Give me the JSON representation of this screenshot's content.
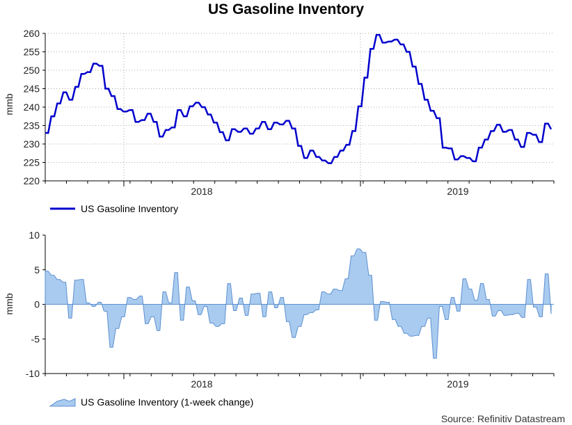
{
  "title": "US Gasoline Inventory",
  "source": "Source: Refinitiv Datastream",
  "colors": {
    "line": "#0000cc",
    "area_fill": "#a9cbef",
    "area_stroke": "#5b8fd0",
    "grid": "#aaaaaa"
  },
  "chart_data": [
    {
      "type": "line",
      "ylabel": "mmb",
      "ylim": [
        220,
        260
      ],
      "yticks": [
        220,
        225,
        230,
        235,
        240,
        245,
        250,
        255,
        260
      ],
      "xlabels": [
        "2018",
        "2019"
      ],
      "grid": true,
      "legend_position": "bottom-left",
      "series": [
        {
          "name": "US Gasoline Inventory",
          "values": [
            233,
            233,
            237.5,
            237.5,
            241,
            241,
            244,
            244,
            242,
            242,
            245.5,
            245.5,
            249,
            249,
            249.5,
            249.5,
            251.8,
            251.8,
            251.2,
            251.2,
            245,
            245,
            243,
            243,
            239.5,
            239.5,
            238.8,
            238.8,
            239.2,
            239.2,
            236,
            236,
            236.5,
            236.5,
            238.2,
            238.2,
            236,
            236,
            232,
            232,
            233.8,
            233.8,
            234.5,
            234.5,
            239.2,
            239.2,
            237.5,
            237.5,
            240.2,
            240.2,
            241.2,
            241.2,
            240,
            240,
            238,
            238,
            235.8,
            235.8,
            233.2,
            233.2,
            231,
            231,
            234,
            234,
            233.3,
            233.3,
            234.2,
            234.2,
            232.8,
            232.8,
            234.2,
            234.2,
            236,
            236,
            234,
            234,
            235.8,
            235.8,
            235.3,
            235.3,
            236.3,
            236.3,
            234.2,
            234.2,
            229.5,
            229.5,
            226.2,
            226.2,
            228.2,
            228.2,
            226.5,
            226.5,
            225.5,
            225.5,
            224.8,
            224.8,
            226.5,
            226.5,
            228.2,
            228.2,
            229.8,
            229.8,
            233.5,
            233.5,
            240.2,
            240.2,
            248,
            248,
            255.8,
            255.8,
            259.6,
            259.6,
            257.5,
            257.5,
            257.8,
            257.8,
            258.3,
            258.3,
            257,
            257,
            255,
            255,
            251,
            251,
            246.3,
            246.3,
            242,
            242,
            239,
            239,
            237,
            237,
            229,
            229,
            228.8,
            228.8,
            225.8,
            225.8,
            226.7,
            226.7,
            226.2,
            226.2,
            225.3,
            225.3,
            229,
            229,
            231.2,
            231.2,
            233.5,
            233.5,
            235.2,
            235.2,
            233.3,
            233.3,
            233.8,
            233.8,
            231.2,
            231.2,
            229.2,
            229.2,
            233,
            233,
            232.5,
            232.5,
            230.5,
            230.5,
            235.5,
            235.5,
            234
          ]
        }
      ]
    },
    {
      "type": "area",
      "ylabel": "mmb",
      "ylim": [
        -10,
        10
      ],
      "yticks": [
        -10,
        -5,
        0,
        5,
        10
      ],
      "xlabels": [
        "2018",
        "2019"
      ],
      "grid": false,
      "legend_position": "bottom-left",
      "series": [
        {
          "name": "US Gasoline Inventory (1-week change)",
          "values": [
            4.8,
            4.8,
            4.2,
            4.2,
            3.6,
            3.6,
            3.2,
            3.2,
            -2,
            -2,
            3.5,
            3.5,
            3.6,
            3.6,
            0.2,
            0.2,
            -0.3,
            -0.3,
            0.3,
            0.3,
            -1,
            -1,
            -6.2,
            -6.2,
            -3.5,
            -3.5,
            -1.8,
            -1.8,
            1,
            1,
            0.7,
            0.7,
            1.2,
            1.2,
            -2.8,
            -2.8,
            -1.8,
            -1.8,
            -3.8,
            -3.8,
            1.8,
            1.8,
            0.2,
            0.2,
            4.6,
            4.6,
            -2.3,
            -2.3,
            2.5,
            2.5,
            0.5,
            0.5,
            -1.5,
            -1.5,
            -0.3,
            -0.3,
            -2.7,
            -2.7,
            -3.2,
            -3.2,
            -2.8,
            -2.8,
            3,
            3,
            -0.9,
            -0.9,
            0.9,
            0.9,
            -1.6,
            -1.6,
            1.5,
            1.5,
            1.6,
            1.6,
            -1.8,
            -1.8,
            1.8,
            1.8,
            -0.5,
            -0.5,
            1,
            1,
            -2.5,
            -2.5,
            -4.8,
            -4.8,
            -3.2,
            -3.2,
            -1.5,
            -1.5,
            -1.2,
            -1.2,
            -0.8,
            -0.8,
            1.8,
            1.8,
            1.5,
            1.5,
            2.2,
            2.2,
            2,
            2,
            3.7,
            3.7,
            7,
            7,
            8,
            8,
            7.5,
            7.5,
            4.2,
            4.2,
            -2.3,
            -2.3,
            0.4,
            0.4,
            0.3,
            0.3,
            -2.2,
            -2.2,
            -3.2,
            -3.2,
            -4.2,
            -4.2,
            -4.6,
            -4.6,
            -4.5,
            -4.5,
            -3.2,
            -3.2,
            -2,
            -2,
            -7.8,
            -7.8,
            -0.3,
            -0.3,
            -2.2,
            -2.2,
            1,
            1,
            -1,
            -1,
            3.7,
            3.7,
            2.2,
            2.2,
            0.6,
            0.6,
            3,
            3,
            0.7,
            0.7,
            -1.7,
            -1.7,
            -0.9,
            -0.9,
            -1.6,
            -1.6,
            -1.5,
            -1.5,
            -1.3,
            -1.3,
            -1.9,
            -1.9,
            3.6,
            3.6,
            -0.4,
            -0.4,
            -1.8,
            -1.8,
            4.4,
            4.4,
            -1.4
          ]
        }
      ]
    }
  ]
}
